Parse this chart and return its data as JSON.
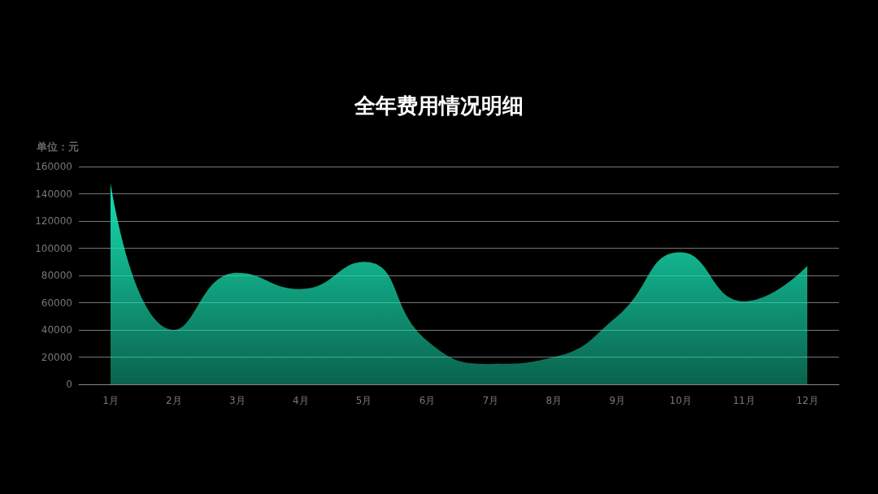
{
  "chart_data": {
    "type": "area",
    "title": "全年费用情况明细",
    "ylabel": "单位：元",
    "categories": [
      "1月",
      "2月",
      "3月",
      "4月",
      "5月",
      "6月",
      "7月",
      "8月",
      "9月",
      "10月",
      "11月",
      "12月"
    ],
    "series": [
      {
        "color": "#17e0b0",
        "values": [
          148000,
          40000,
          82000,
          70000,
          90000,
          32000,
          15000,
          20000,
          50000,
          97000,
          61000,
          87000
        ]
      }
    ],
    "ylim": [
      0,
      160000
    ],
    "yticks": [
      0,
      20000,
      40000,
      60000,
      80000,
      100000,
      120000,
      140000,
      160000
    ],
    "grid": "y",
    "marker": "none"
  }
}
